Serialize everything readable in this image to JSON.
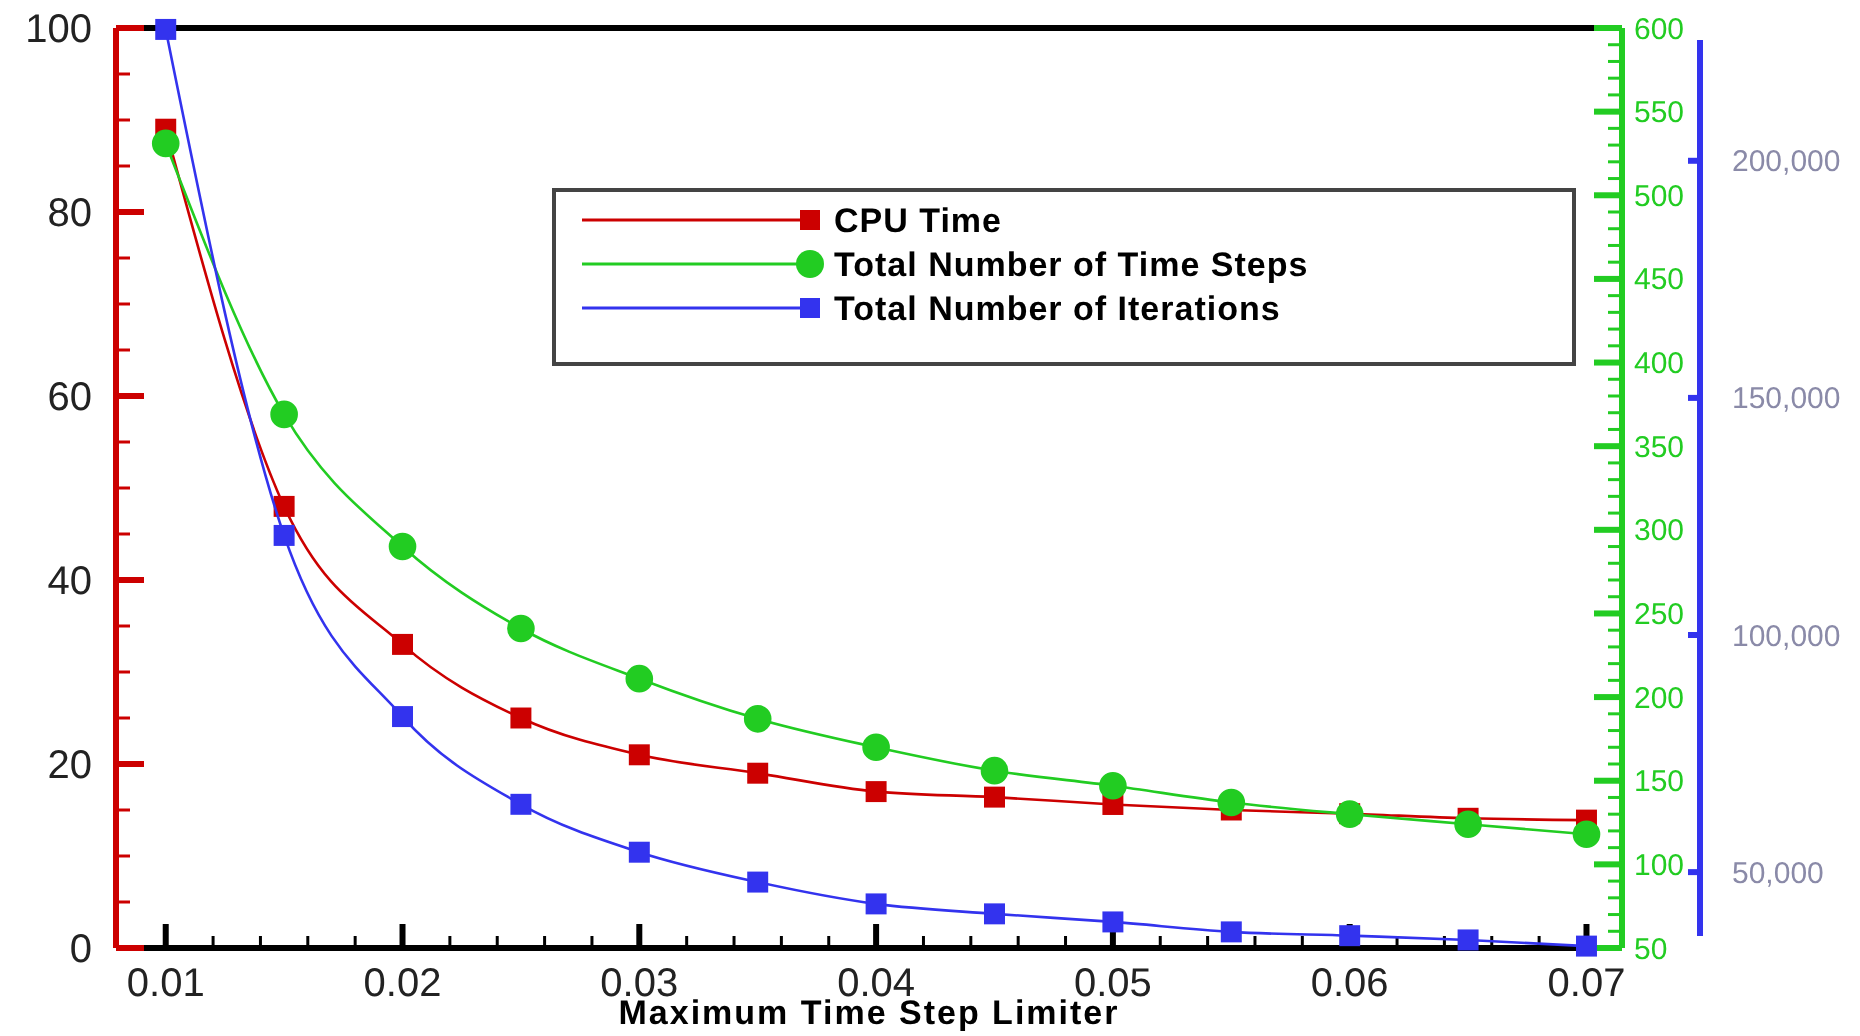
{
  "chart_data": {
    "type": "line",
    "xlabel": "Maximum Time Step Limiter",
    "x": [
      0.01,
      0.015,
      0.02,
      0.025,
      0.03,
      0.035,
      0.04,
      0.045,
      0.05,
      0.055,
      0.06,
      0.065,
      0.07
    ],
    "series": [
      {
        "name": "CPU Time",
        "color": "#cc0000",
        "marker": "square",
        "values": [
          89,
          48,
          33,
          25,
          21,
          19,
          17,
          16.4,
          15.6,
          15,
          14.6,
          14.1,
          13.9
        ]
      },
      {
        "name": "Total Number of Time Steps",
        "color": "#22cc22",
        "marker": "circle",
        "axis": "y2",
        "values": [
          531,
          369,
          290,
          241,
          211,
          187,
          170,
          156,
          147,
          137,
          130,
          124,
          118
        ]
      },
      {
        "name": "Total Number of Iterations",
        "color": "#3333ee",
        "marker": "square",
        "axis": "y3",
        "values": [
          227700,
          121000,
          82800,
          64300,
          54200,
          47900,
          43300,
          41200,
          39500,
          37400,
          36600,
          35700,
          34400
        ]
      }
    ],
    "xlim": [
      0.0079,
      0.0715
    ],
    "xticks": [
      0.01,
      {
        "value": 0.012,
        "label": null
      },
      {
        "value": 0.014,
        "label": null
      },
      {
        "value": 0.016,
        "label": null
      },
      {
        "value": 0.018,
        "label": null
      },
      0.02,
      {
        "value": 0.022,
        "label": null
      },
      {
        "value": 0.024,
        "label": null
      },
      {
        "value": 0.026,
        "label": null
      },
      {
        "value": 0.028,
        "label": null
      },
      0.03,
      {
        "value": 0.032,
        "label": null
      },
      {
        "value": 0.034,
        "label": null
      },
      {
        "value": 0.036,
        "label": null
      },
      {
        "value": 0.038,
        "label": null
      },
      0.04,
      {
        "value": 0.042,
        "label": null
      },
      {
        "value": 0.044,
        "label": null
      },
      {
        "value": 0.046,
        "label": null
      },
      {
        "value": 0.048,
        "label": null
      },
      0.05,
      {
        "value": 0.052,
        "label": null
      },
      {
        "value": 0.054,
        "label": null
      },
      {
        "value": 0.056,
        "label": null
      },
      {
        "value": 0.058,
        "label": null
      },
      0.06,
      {
        "value": 0.062,
        "label": null
      },
      {
        "value": 0.064,
        "label": null
      },
      {
        "value": 0.066,
        "label": null
      },
      {
        "value": 0.068,
        "label": null
      },
      0.07
    ],
    "ylim": [
      0,
      100
    ],
    "yticks": [
      0,
      {
        "value": 5,
        "label": null
      },
      {
        "value": 10,
        "label": null
      },
      {
        "value": 15,
        "label": null
      },
      20,
      {
        "value": 25,
        "label": null
      },
      {
        "value": 30,
        "label": null
      },
      {
        "value": 35,
        "label": null
      },
      40,
      {
        "value": 45,
        "label": null
      },
      {
        "value": 50,
        "label": null
      },
      {
        "value": 55,
        "label": null
      },
      60,
      {
        "value": 65,
        "label": null
      },
      {
        "value": 70,
        "label": null
      },
      {
        "value": 75,
        "label": null
      },
      80,
      {
        "value": 85,
        "label": null
      },
      {
        "value": 90,
        "label": null
      },
      {
        "value": 95,
        "label": null
      },
      100
    ],
    "y2lim": [
      50,
      600
    ],
    "y2ticks": [
      50,
      {
        "value": 60,
        "label": null
      },
      {
        "value": 70,
        "label": null
      },
      {
        "value": 80,
        "label": null
      },
      {
        "value": 90,
        "label": null
      },
      100,
      {
        "value": 110,
        "label": null
      },
      {
        "value": 120,
        "label": null
      },
      {
        "value": 130,
        "label": null
      },
      {
        "value": 140,
        "label": null
      },
      150,
      {
        "value": 160,
        "label": null
      },
      {
        "value": 170,
        "label": null
      },
      {
        "value": 180,
        "label": null
      },
      {
        "value": 190,
        "label": null
      },
      200,
      {
        "value": 210,
        "label": null
      },
      {
        "value": 220,
        "label": null
      },
      {
        "value": 230,
        "label": null
      },
      {
        "value": 240,
        "label": null
      },
      250,
      {
        "value": 260,
        "label": null
      },
      {
        "value": 270,
        "label": null
      },
      {
        "value": 280,
        "label": null
      },
      {
        "value": 290,
        "label": null
      },
      300,
      {
        "value": 310,
        "label": null
      },
      {
        "value": 320,
        "label": null
      },
      {
        "value": 330,
        "label": null
      },
      {
        "value": 340,
        "label": null
      },
      350,
      {
        "value": 360,
        "label": null
      },
      {
        "value": 370,
        "label": null
      },
      {
        "value": 380,
        "label": null
      },
      {
        "value": 390,
        "label": null
      },
      400,
      {
        "value": 410,
        "label": null
      },
      {
        "value": 420,
        "label": null
      },
      {
        "value": 430,
        "label": null
      },
      {
        "value": 440,
        "label": null
      },
      450,
      {
        "value": 460,
        "label": null
      },
      {
        "value": 470,
        "label": null
      },
      {
        "value": 480,
        "label": null
      },
      {
        "value": 490,
        "label": null
      },
      500,
      {
        "value": 510,
        "label": null
      },
      {
        "value": 520,
        "label": null
      },
      {
        "value": 530,
        "label": null
      },
      {
        "value": 540,
        "label": null
      },
      550,
      {
        "value": 560,
        "label": null
      },
      {
        "value": 570,
        "label": null
      },
      {
        "value": 580,
        "label": null
      },
      {
        "value": 590,
        "label": null
      },
      600
    ],
    "y3lim": [
      34000,
      228000
    ],
    "y3ticks": [
      {
        "value": 50000,
        "label": "50,000"
      },
      {
        "value": 100000,
        "label": "100,000"
      },
      {
        "value": 150000,
        "label": "150,000"
      },
      {
        "value": 200000,
        "label": "200,000"
      }
    ],
    "legend": "top right",
    "grid": false
  }
}
